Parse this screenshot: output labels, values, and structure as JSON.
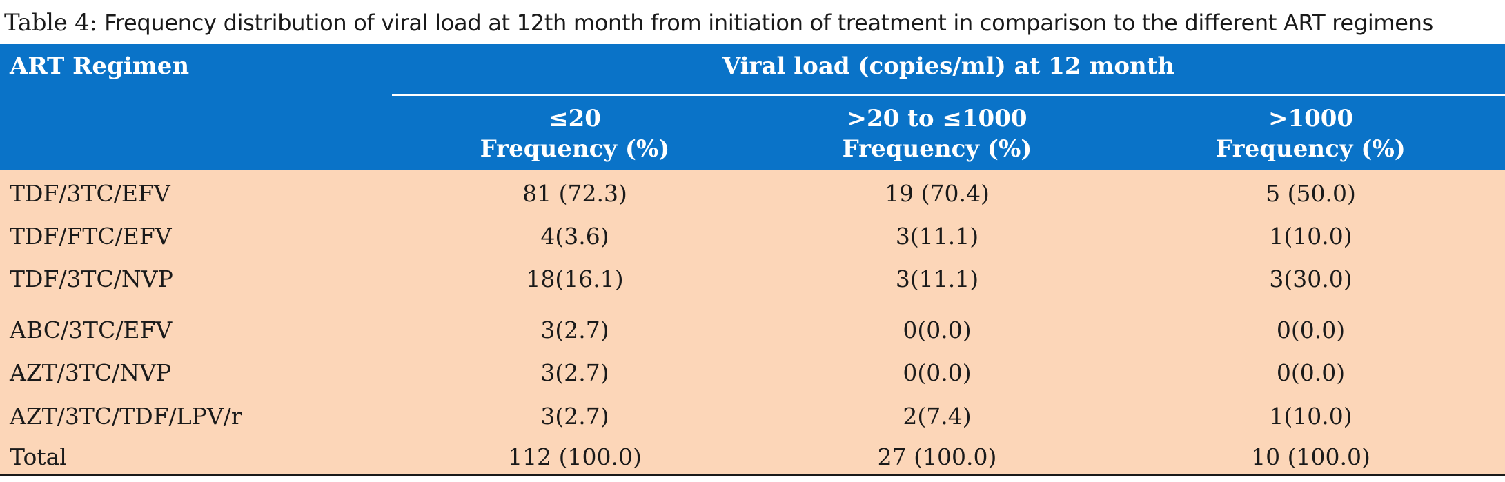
{
  "caption": {
    "label": "Table 4:",
    "text": "Frequency distribution of viral load at 12th month from initiation of treatment in comparison to the different ART regimens"
  },
  "table": {
    "row_header": "ART Regimen",
    "group_header": "Viral load (copies/ml) at 12 month",
    "columns": [
      {
        "range": "≤20",
        "label": "Frequency (%)"
      },
      {
        "range": ">20 to ≤1000",
        "label": "Frequency (%)"
      },
      {
        "range": ">1000",
        "label": "Frequency (%)"
      }
    ],
    "rows": [
      {
        "regimen": "TDF/3TC/EFV",
        "values": [
          "81 (72.3)",
          "19 (70.4)",
          "5 (50.0)"
        ]
      },
      {
        "regimen": "TDF/FTC/EFV",
        "values": [
          "4(3.6)",
          "3(11.1)",
          "1(10.0)"
        ]
      },
      {
        "regimen": "TDF/3TC/NVP",
        "values": [
          "18(16.1)",
          "3(11.1)",
          "3(30.0)"
        ]
      },
      {
        "regimen": "ABC/3TC/EFV",
        "values": [
          "3(2.7)",
          "0(0.0)",
          "0(0.0)"
        ]
      },
      {
        "regimen": "AZT/3TC/NVP",
        "values": [
          "3(2.7)",
          "0(0.0)",
          "0(0.0)"
        ]
      },
      {
        "regimen": "AZT/3TC/TDF/LPV/r",
        "values": [
          "3(2.7)",
          "2(7.4)",
          "1(10.0)"
        ]
      },
      {
        "regimen": "Total",
        "values": [
          "112 (100.0)",
          "27 (100.0)",
          "10 (100.0)"
        ]
      }
    ]
  },
  "colors": {
    "header_bg": "#0a73c8",
    "body_bg": "#fcd6b8",
    "header_text": "#ffffff"
  }
}
